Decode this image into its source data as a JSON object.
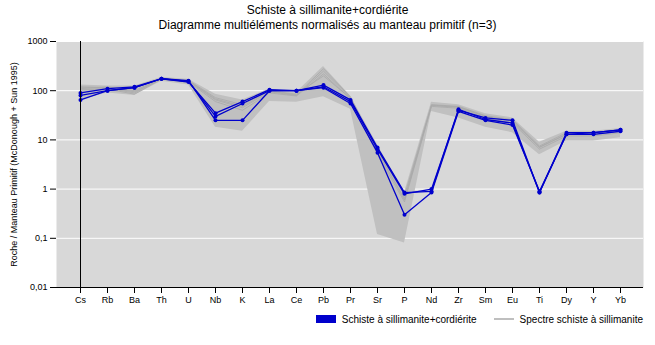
{
  "chart_data": {
    "type": "line",
    "title": "Schiste à sillimanite+cordiérite",
    "subtitle": "Diagramme multiéléments normalisés au manteau primitif (n=3)",
    "ylabel": "Roche / Manteau Primitif (McDonough + Sun 1995)",
    "categories": [
      "Cs",
      "Rb",
      "Ba",
      "Th",
      "U",
      "Nb",
      "K",
      "La",
      "Ce",
      "Pb",
      "Pr",
      "Sr",
      "P",
      "Nd",
      "Zr",
      "Sm",
      "Eu",
      "Ti",
      "Dy",
      "Y",
      "Yb"
    ],
    "series": [
      {
        "type": "area",
        "color": "#c0c0c0",
        "upper": [
          130,
          125,
          125,
          185,
          170,
          85,
          65,
          108,
          92,
          310,
          78,
          8.0,
          0.85,
          58,
          52,
          34,
          28,
          9.0,
          15,
          15,
          17
        ],
        "lower": [
          65,
          90,
          80,
          155,
          130,
          18,
          15,
          60,
          58,
          75,
          42,
          0.12,
          0.08,
          38,
          28,
          18,
          14,
          5.0,
          9.5,
          9.5,
          11
        ]
      },
      {
        "type": "line",
        "name": "Schiste à sillimanite+cordiérite",
        "color": "#0000cc",
        "marker": "o",
        "values": [
          65,
          100,
          115,
          175,
          160,
          25,
          25,
          100,
          100,
          120,
          60,
          6.5,
          0.8,
          1.0,
          40,
          28,
          25,
          0.85,
          13,
          13,
          15
        ]
      },
      {
        "type": "line",
        "name": "Schiste à sillimanite+cordiérite",
        "color": "#0000cc",
        "marker": "o",
        "values": [
          80,
          100,
          115,
          175,
          155,
          30,
          55,
          100,
          100,
          115,
          55,
          5.5,
          0.3,
          0.85,
          38,
          25,
          20,
          0.9,
          13,
          14,
          16
        ]
      },
      {
        "type": "line",
        "name": "Schiste à sillimanite+cordiérite",
        "color": "#0000cc",
        "marker": "o",
        "values": [
          90,
          110,
          120,
          175,
          150,
          35,
          60,
          105,
          100,
          130,
          65,
          7.0,
          0.85,
          0.9,
          42,
          26,
          22,
          0.85,
          14,
          14,
          16
        ]
      },
      {
        "type": "line",
        "name": "Spectre schiste à sillimanite",
        "color": "#aaaaaa",
        "values": [
          120,
          115,
          95,
          175,
          155,
          65,
          45,
          95,
          80,
          250,
          72,
          5.5,
          0.65,
          50,
          46,
          30,
          24,
          7.0,
          13,
          13,
          15
        ]
      },
      {
        "type": "line",
        "name": "Spectre schiste à sillimanite",
        "color": "#aaaaaa",
        "values": [
          105,
          108,
          85,
          172,
          150,
          60,
          40,
          90,
          78,
          220,
          68,
          5.0,
          0.55,
          48,
          44,
          28,
          22,
          6.5,
          12,
          12,
          14
        ]
      },
      {
        "type": "line",
        "name": "Spectre schiste à sillimanite",
        "color": "#aaaaaa",
        "values": [
          115,
          112,
          90,
          178,
          158,
          68,
          48,
          98,
          82,
          280,
          75,
          6.0,
          0.75,
          52,
          48,
          31,
          26,
          7.5,
          14,
          14,
          16
        ]
      },
      {
        "type": "line",
        "name": "Spectre schiste à sillimanite",
        "color": "#aaaaaa",
        "values": [
          110,
          120,
          100,
          180,
          162,
          72,
          52,
          100,
          85,
          200,
          70,
          5.8,
          0.6,
          51,
          47,
          30,
          24,
          7.2,
          13,
          13,
          15
        ]
      }
    ],
    "ylim": [
      0.01,
      1000
    ],
    "yticks": [
      {
        "value": 0.01,
        "label": "0,01"
      },
      {
        "value": 0.1,
        "label": "0,1"
      },
      1,
      10,
      100,
      1000
    ],
    "log": "y",
    "grid": true,
    "legend": "lower right"
  }
}
